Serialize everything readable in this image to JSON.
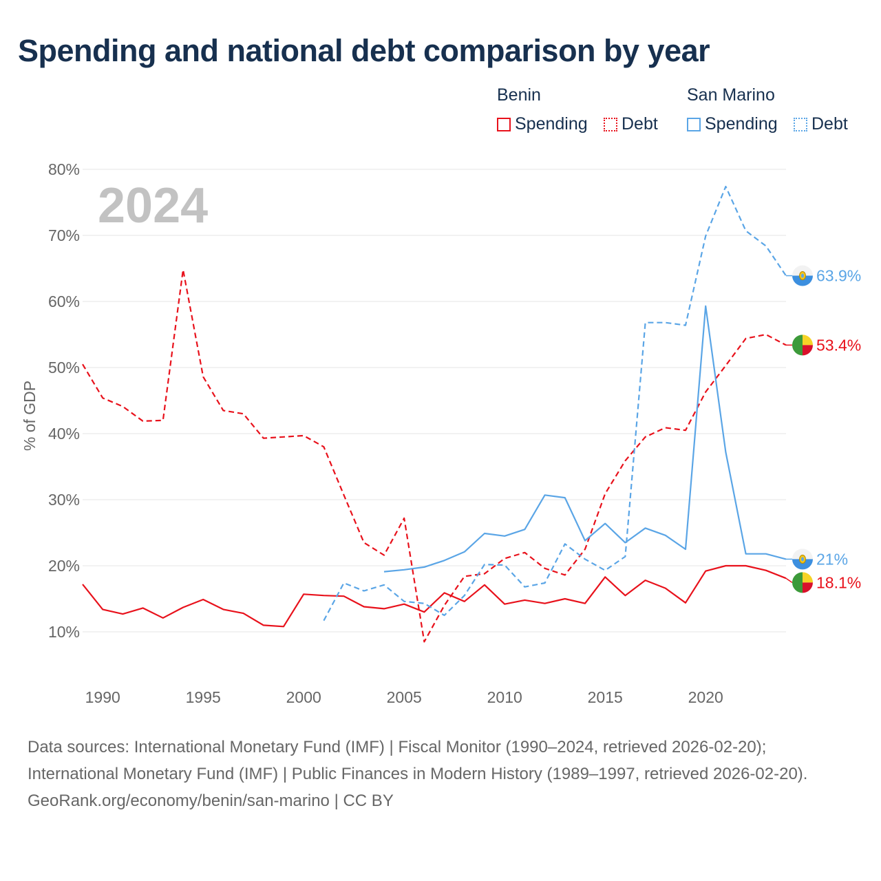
{
  "title": "Spending and national debt comparison by year",
  "legend": {
    "groups": [
      {
        "country": "Benin",
        "color": "#e8111b",
        "items": [
          {
            "label": "Spending",
            "style": "solid"
          },
          {
            "label": "Debt",
            "style": "dotted"
          }
        ]
      },
      {
        "country": "San Marino",
        "color": "#5aa5e6",
        "items": [
          {
            "label": "Spending",
            "style": "solid"
          },
          {
            "label": "Debt",
            "style": "dotted"
          }
        ]
      }
    ]
  },
  "chart_data": {
    "type": "line",
    "title": "Spending and national debt comparison by year",
    "year_label": "2024",
    "ylabel": "% of GDP",
    "xlabel": "",
    "xlim": [
      1989,
      2024
    ],
    "ylim": [
      0,
      80
    ],
    "y_ticks": [
      10,
      20,
      30,
      40,
      50,
      60,
      70,
      80
    ],
    "y_tick_labels": [
      "10%",
      "20%",
      "30%",
      "40%",
      "50%",
      "60%",
      "70%",
      "80%"
    ],
    "x_ticks": [
      1990,
      1995,
      2000,
      2005,
      2010,
      2015,
      2020
    ],
    "x_tick_labels": [
      "1990",
      "1995",
      "2000",
      "2005",
      "2010",
      "2015",
      "2020"
    ],
    "grid": true,
    "series": [
      {
        "name": "Benin Spending",
        "country": "Benin",
        "metric": "Spending",
        "color": "#e8111b",
        "dash": "solid",
        "x": [
          1989,
          1990,
          1991,
          1992,
          1993,
          1994,
          1995,
          1996,
          1997,
          1998,
          1999,
          2000,
          2001,
          2002,
          2003,
          2004,
          2005,
          2006,
          2007,
          2008,
          2009,
          2010,
          2011,
          2012,
          2013,
          2014,
          2015,
          2016,
          2017,
          2018,
          2019,
          2020,
          2021,
          2022,
          2023,
          2024
        ],
        "values": [
          17.2,
          13.4,
          12.7,
          13.6,
          12.1,
          13.7,
          14.9,
          13.4,
          12.8,
          11.0,
          10.8,
          15.7,
          15.5,
          15.4,
          13.8,
          13.5,
          14.2,
          13.0,
          15.9,
          14.6,
          17.1,
          14.2,
          14.8,
          14.3,
          15.0,
          14.3,
          18.3,
          15.5,
          17.8,
          16.6,
          14.4,
          19.2,
          20.0,
          20.0,
          19.3,
          18.1
        ],
        "end_label": "18.1%"
      },
      {
        "name": "Benin Debt",
        "country": "Benin",
        "metric": "Debt",
        "color": "#e8111b",
        "dash": "dashed",
        "x": [
          1989,
          1990,
          1991,
          1992,
          1993,
          1994,
          1995,
          1996,
          1997,
          1998,
          1999,
          2000,
          2001,
          2002,
          2003,
          2004,
          2005,
          2006,
          2007,
          2008,
          2009,
          2010,
          2011,
          2012,
          2013,
          2014,
          2015,
          2016,
          2017,
          2018,
          2019,
          2020,
          2021,
          2022,
          2023,
          2024
        ],
        "values": [
          50.5,
          45.4,
          44.1,
          41.9,
          42.0,
          64.8,
          48.6,
          43.5,
          43.0,
          39.3,
          39.5,
          39.7,
          38.0,
          30.7,
          23.5,
          21.6,
          27.2,
          8.5,
          14.0,
          18.4,
          18.8,
          21.1,
          22.0,
          19.6,
          18.6,
          22.5,
          30.9,
          35.9,
          39.5,
          40.9,
          40.5,
          46.3,
          50.3,
          54.4,
          55.0,
          53.4
        ],
        "end_label": "53.4%"
      },
      {
        "name": "San Marino Spending",
        "country": "San Marino",
        "metric": "Spending",
        "color": "#5aa5e6",
        "dash": "solid",
        "x": [
          2004,
          2005,
          2006,
          2007,
          2008,
          2009,
          2010,
          2011,
          2012,
          2013,
          2014,
          2015,
          2016,
          2017,
          2018,
          2019,
          2020,
          2021,
          2022,
          2023,
          2024
        ],
        "values": [
          19.1,
          19.4,
          19.8,
          20.8,
          22.1,
          24.9,
          24.5,
          25.5,
          30.7,
          30.3,
          23.8,
          26.4,
          23.5,
          25.7,
          24.6,
          22.5,
          59.3,
          37.2,
          21.8,
          21.8,
          21.0
        ],
        "end_label": "21%"
      },
      {
        "name": "San Marino Debt",
        "country": "San Marino",
        "metric": "Debt",
        "color": "#5aa5e6",
        "dash": "dashed",
        "x": [
          2001,
          2002,
          2003,
          2004,
          2005,
          2006,
          2007,
          2008,
          2009,
          2010,
          2011,
          2012,
          2013,
          2014,
          2015,
          2016,
          2017,
          2018,
          2019,
          2020,
          2021,
          2022,
          2023,
          2024
        ],
        "values": [
          11.7,
          17.4,
          16.2,
          17.1,
          14.6,
          14.3,
          12.5,
          15.5,
          20.2,
          20.1,
          16.8,
          17.4,
          23.3,
          21.0,
          19.3,
          21.4,
          56.8,
          56.8,
          56.4,
          69.9,
          77.4,
          70.7,
          68.4,
          63.9
        ],
        "end_label": "63.9%"
      }
    ]
  },
  "footer": {
    "sources": "Data sources: International Monetary Fund (IMF) | Fiscal Monitor (1990–2024, retrieved 2026-02-20); International Monetary Fund (IMF) | Public Finances in Modern History (1989–1997, retrieved 2026-02-20).",
    "attribution": "GeoRank.org/economy/benin/san-marino | CC BY"
  }
}
